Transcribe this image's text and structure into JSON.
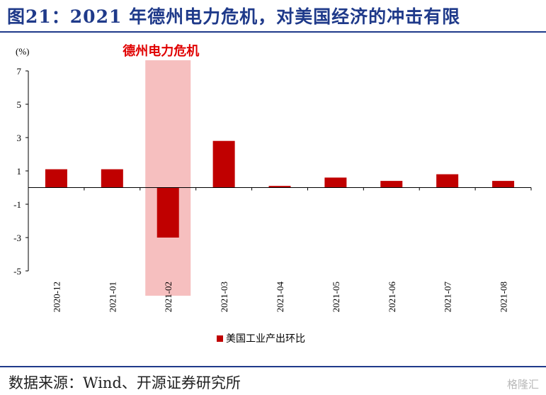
{
  "title": "图21：2021 年德州电力危机，对美国经济的冲击有限",
  "source": "数据来源：Wind、开源证券研究所",
  "watermark": "格隆汇",
  "colors": {
    "title": "#1f3a8a",
    "bar": "#c00000",
    "highlight": "#f4b4b4",
    "annotation": "#e00000"
  },
  "chart_data": {
    "type": "bar",
    "y_unit": "(%)",
    "categories": [
      "2020-12",
      "2021-01",
      "2021-02",
      "2021-03",
      "2021-04",
      "2021-05",
      "2021-06",
      "2021-07",
      "2021-08"
    ],
    "series": [
      {
        "name": "美国工业产出环比",
        "values": [
          1.1,
          1.1,
          -3.0,
          2.8,
          0.1,
          0.6,
          0.4,
          0.8,
          0.4
        ]
      }
    ],
    "ylim": [
      -5,
      7
    ],
    "yticks": [
      7,
      5,
      3,
      1,
      -1,
      -3,
      -5
    ],
    "highlight": {
      "category": "2021-02",
      "label": "德州电力危机"
    },
    "legend_position": "bottom"
  }
}
